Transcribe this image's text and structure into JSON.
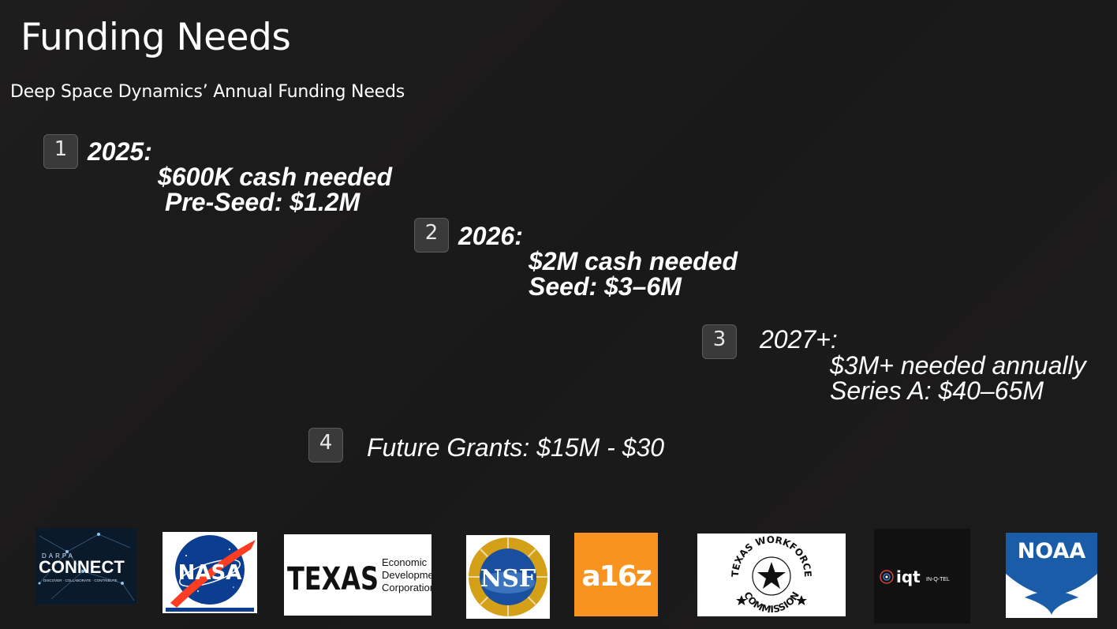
{
  "slide": {
    "title": "Funding Needs",
    "subtitle": "Deep Space Dynamics’ Annual Funding Needs"
  },
  "milestones": [
    {
      "number": "1",
      "year": "2025:",
      "cash": "$600K cash needed",
      "round": "Pre-Seed: $1.2M"
    },
    {
      "number": "2",
      "year": "2026:",
      "cash": "$2M cash needed",
      "round": "Seed: $3–6M"
    },
    {
      "number": "3",
      "year": "2027+:",
      "cash": "$3M+ needed annually",
      "round": "Series A: $40–65M"
    },
    {
      "number": "4",
      "label": "Future Grants:  $15M - $30"
    }
  ],
  "logos": {
    "darpa": {
      "top": "DARPA",
      "main": "CONNECT",
      "tagline": "DISCOVER · COLLABORATE · CONTRIBUTE"
    },
    "nasa": {
      "text": "NASA"
    },
    "texas": {
      "word": "TEXAS",
      "line1": "Economic",
      "line2": "Development",
      "line3": "Corporation"
    },
    "nsf": {
      "text": "NSF"
    },
    "a16z": {
      "text": "a16z"
    },
    "twc": {
      "top": "TEXAS WORKFORCE",
      "bottom": "COMMISSION"
    },
    "iqt": {
      "text": "iqt",
      "sub": "IN-Q-TEL"
    },
    "noaa": {
      "text": "NOAA"
    }
  },
  "colors": {
    "background": "#1c1b1b",
    "box": "#3a3a3a",
    "nasa_blue": "#0b3d91",
    "nasa_red": "#fc3d21",
    "a16z_orange": "#f7931e",
    "noaa_blue": "#1a5ca8",
    "nsf_gold": "#d4a017"
  }
}
